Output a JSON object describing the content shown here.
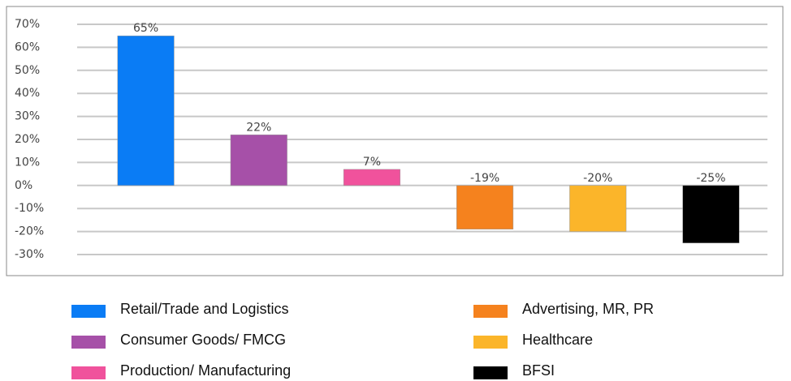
{
  "chart_data": {
    "type": "bar",
    "categories": [
      "Retail/Trade and Logistics",
      "Consumer Goods/ FMCG",
      "Production/ Manufacturing",
      "Advertising, MR, PR",
      "Healthcare",
      "BFSI"
    ],
    "values": [
      65,
      22,
      7,
      -19,
      -20,
      -25
    ],
    "value_labels": [
      "65%",
      "22%",
      "7%",
      "-19%",
      "-20%",
      "-25%"
    ],
    "colors": [
      "#0a7cf5",
      "#a650a8",
      "#f0529c",
      "#f5821e",
      "#fbb52a",
      "#000000"
    ],
    "ylim": [
      -30,
      70
    ],
    "yticks": [
      {
        "value": -30,
        "label": "-30%"
      },
      {
        "value": -20,
        "label": "-20%"
      },
      {
        "value": -10,
        "label": "-10%"
      },
      {
        "value": 0,
        "label": "0%"
      },
      {
        "value": 10,
        "label": "10%"
      },
      {
        "value": 20,
        "label": "20%"
      },
      {
        "value": 30,
        "label": "30%"
      },
      {
        "value": 40,
        "label": "40%"
      },
      {
        "value": 50,
        "label": "50%"
      },
      {
        "value": 60,
        "label": "60%"
      },
      {
        "value": 70,
        "label": "70%"
      }
    ],
    "grid": true,
    "legend": "bottom"
  }
}
